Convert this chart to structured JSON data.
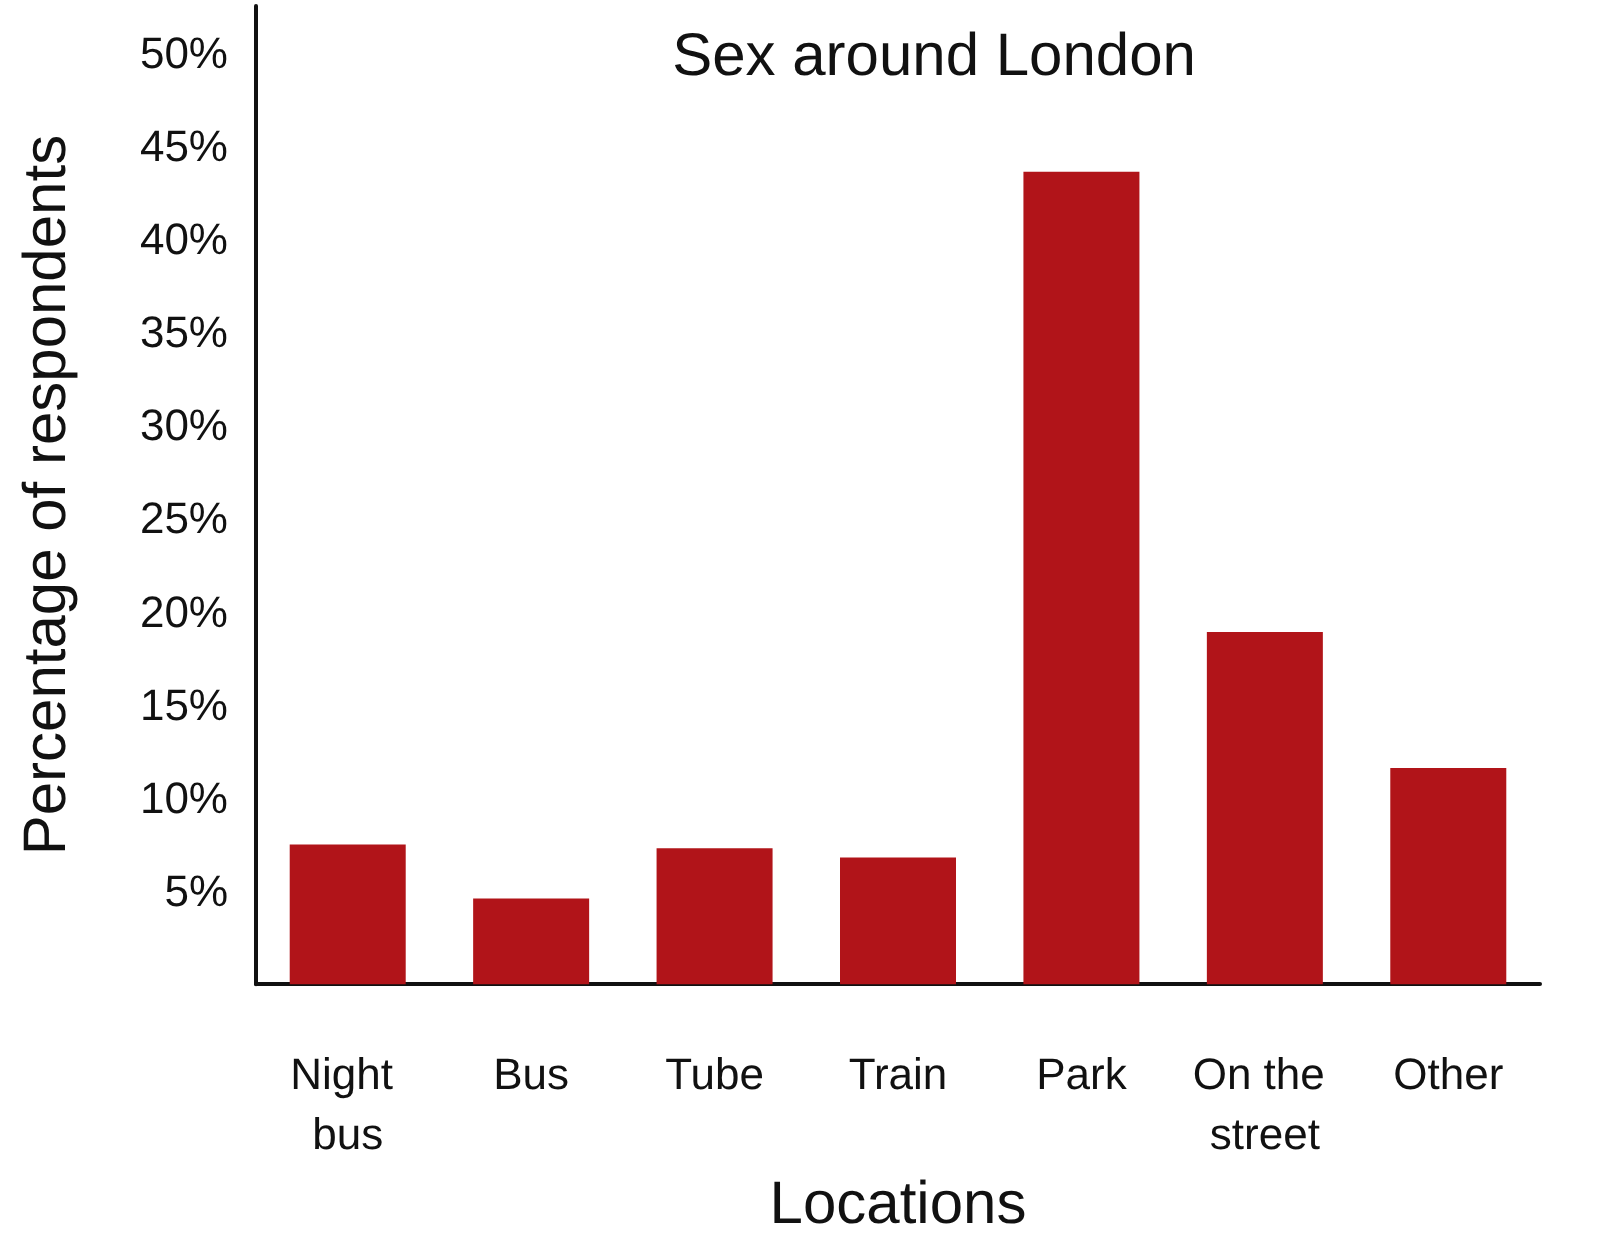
{
  "chart_data": {
    "type": "bar",
    "title": "Sex around London",
    "xlabel": "Locations",
    "ylabel": "Percentage of respondents",
    "categories": [
      "Night bus",
      "Bus",
      "Tube",
      "Train",
      "Park",
      "On the street",
      "Other"
    ],
    "values": [
      7.5,
      4.6,
      7.3,
      6.8,
      43.6,
      18.9,
      11.6
    ],
    "color": "#b11419",
    "ylim": [
      0,
      52.5
    ],
    "yticks": [
      {
        "value": 5,
        "label": "5%"
      },
      {
        "value": 10,
        "label": "10%"
      },
      {
        "value": 15,
        "label": "15%"
      },
      {
        "value": 20,
        "label": "20%"
      },
      {
        "value": 25,
        "label": "25%"
      },
      {
        "value": 30,
        "label": "30%"
      },
      {
        "value": 35,
        "label": "35%"
      },
      {
        "value": 40,
        "label": "40%"
      },
      {
        "value": 45,
        "label": "45%"
      },
      {
        "value": 50,
        "label": "50%"
      }
    ],
    "grid": false
  }
}
